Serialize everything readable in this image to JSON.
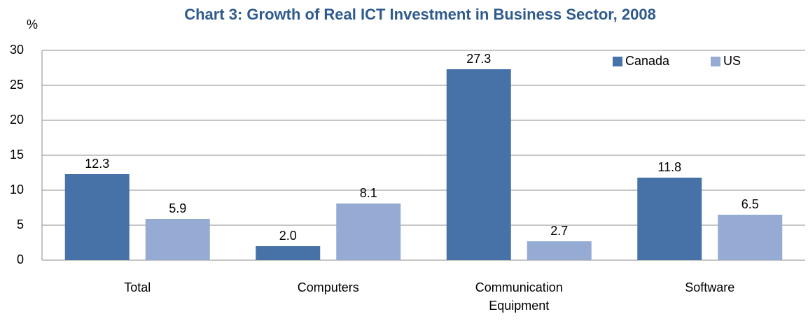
{
  "chart_data": {
    "type": "bar",
    "title": "Chart 3: Growth of Real ICT Investment in Business Sector, 2008",
    "ylabel": "%",
    "categories": [
      "Total",
      "Computers",
      "Communication Equipment",
      "Software"
    ],
    "series": [
      {
        "name": "Canada",
        "color": "#4672a8",
        "values": [
          12.3,
          2.0,
          27.3,
          11.8
        ],
        "value_labels": [
          "12.3",
          "2.0",
          "27.3",
          "11.8"
        ]
      },
      {
        "name": "US",
        "color": "#95abd3",
        "values": [
          5.9,
          8.1,
          2.7,
          6.5
        ],
        "value_labels": [
          "5.9",
          "8.1",
          "2.7",
          "6.5"
        ]
      }
    ],
    "ylim": [
      0,
      30
    ],
    "yticks": [
      0,
      5,
      10,
      15,
      20,
      25,
      30
    ],
    "grid": true,
    "legend": "top-right"
  }
}
